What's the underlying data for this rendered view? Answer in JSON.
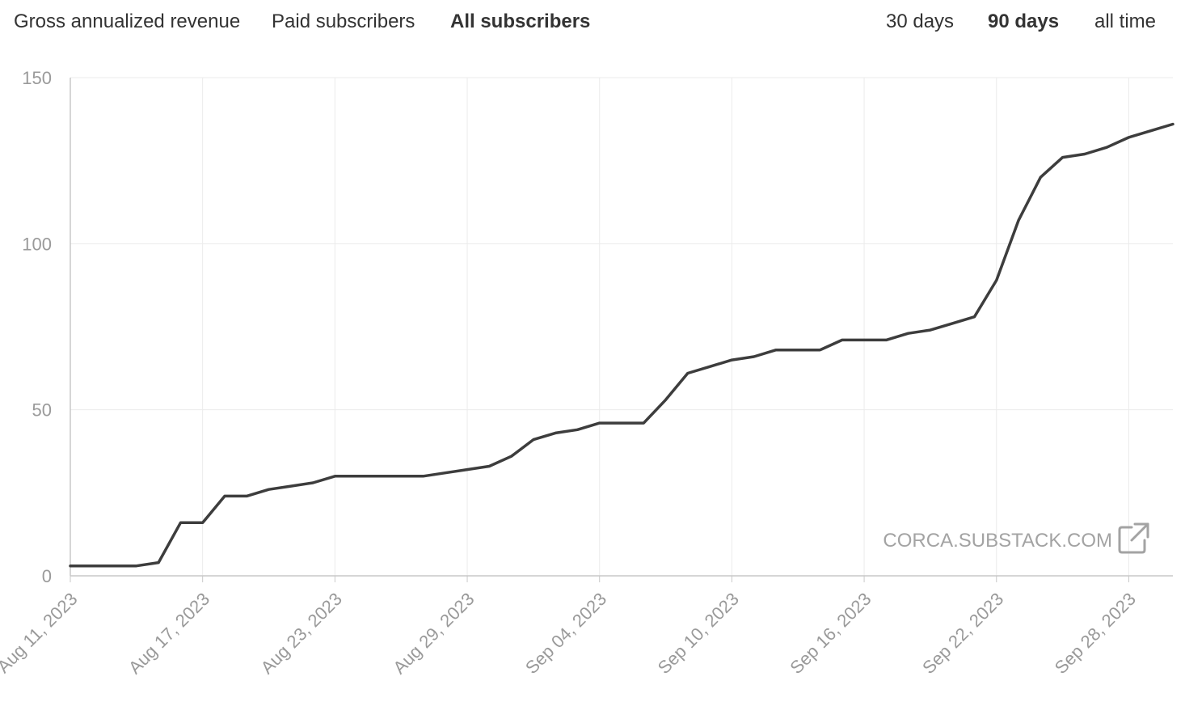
{
  "metric_tabs": [
    {
      "label": "Gross annualized revenue",
      "active": false
    },
    {
      "label": "Paid subscribers",
      "active": false
    },
    {
      "label": "All subscribers",
      "active": true
    }
  ],
  "range_tabs": [
    {
      "label": "30 days",
      "active": false
    },
    {
      "label": "90 days",
      "active": true
    },
    {
      "label": "all time",
      "active": false
    }
  ],
  "watermark": {
    "text": "CORCA.SUBSTACK.COM",
    "icon": "external-link-icon"
  },
  "colors": {
    "line": "#3d3d3d",
    "grid": "#ebebeb",
    "axis": "#c8c8c8",
    "tick_text": "#9a9a9a"
  },
  "chart_data": {
    "type": "line",
    "x_type": "date",
    "x_range": [
      "2023-08-11",
      "2023-09-30"
    ],
    "ylim": [
      0,
      150
    ],
    "y_ticks": [
      0,
      50,
      100,
      150
    ],
    "x_ticks": [
      "Aug 11, 2023",
      "Aug 17, 2023",
      "Aug 23, 2023",
      "Aug 29, 2023",
      "Sep 04, 2023",
      "Sep 10, 2023",
      "Sep 16, 2023",
      "Sep 22, 2023",
      "Sep 28, 2023"
    ],
    "grid": true,
    "series": [
      {
        "points": [
          [
            "2023-08-11",
            3
          ],
          [
            "2023-08-12",
            3
          ],
          [
            "2023-08-13",
            3
          ],
          [
            "2023-08-14",
            3
          ],
          [
            "2023-08-15",
            4
          ],
          [
            "2023-08-16",
            16
          ],
          [
            "2023-08-17",
            16
          ],
          [
            "2023-08-18",
            24
          ],
          [
            "2023-08-19",
            24
          ],
          [
            "2023-08-20",
            26
          ],
          [
            "2023-08-21",
            27
          ],
          [
            "2023-08-22",
            28
          ],
          [
            "2023-08-23",
            30
          ],
          [
            "2023-08-24",
            30
          ],
          [
            "2023-08-25",
            30
          ],
          [
            "2023-08-26",
            30
          ],
          [
            "2023-08-27",
            30
          ],
          [
            "2023-08-28",
            31
          ],
          [
            "2023-08-29",
            32
          ],
          [
            "2023-08-30",
            33
          ],
          [
            "2023-08-31",
            36
          ],
          [
            "2023-09-01",
            41
          ],
          [
            "2023-09-02",
            43
          ],
          [
            "2023-09-03",
            44
          ],
          [
            "2023-09-04",
            46
          ],
          [
            "2023-09-05",
            46
          ],
          [
            "2023-09-06",
            46
          ],
          [
            "2023-09-07",
            53
          ],
          [
            "2023-09-08",
            61
          ],
          [
            "2023-09-09",
            63
          ],
          [
            "2023-09-10",
            65
          ],
          [
            "2023-09-11",
            66
          ],
          [
            "2023-09-12",
            68
          ],
          [
            "2023-09-13",
            68
          ],
          [
            "2023-09-14",
            68
          ],
          [
            "2023-09-15",
            71
          ],
          [
            "2023-09-16",
            71
          ],
          [
            "2023-09-17",
            71
          ],
          [
            "2023-09-18",
            73
          ],
          [
            "2023-09-19",
            74
          ],
          [
            "2023-09-20",
            76
          ],
          [
            "2023-09-21",
            78
          ],
          [
            "2023-09-22",
            89
          ],
          [
            "2023-09-23",
            107
          ],
          [
            "2023-09-24",
            120
          ],
          [
            "2023-09-25",
            126
          ],
          [
            "2023-09-26",
            127
          ],
          [
            "2023-09-27",
            129
          ],
          [
            "2023-09-28",
            132
          ],
          [
            "2023-09-29",
            134
          ],
          [
            "2023-09-30",
            136
          ]
        ]
      }
    ]
  }
}
